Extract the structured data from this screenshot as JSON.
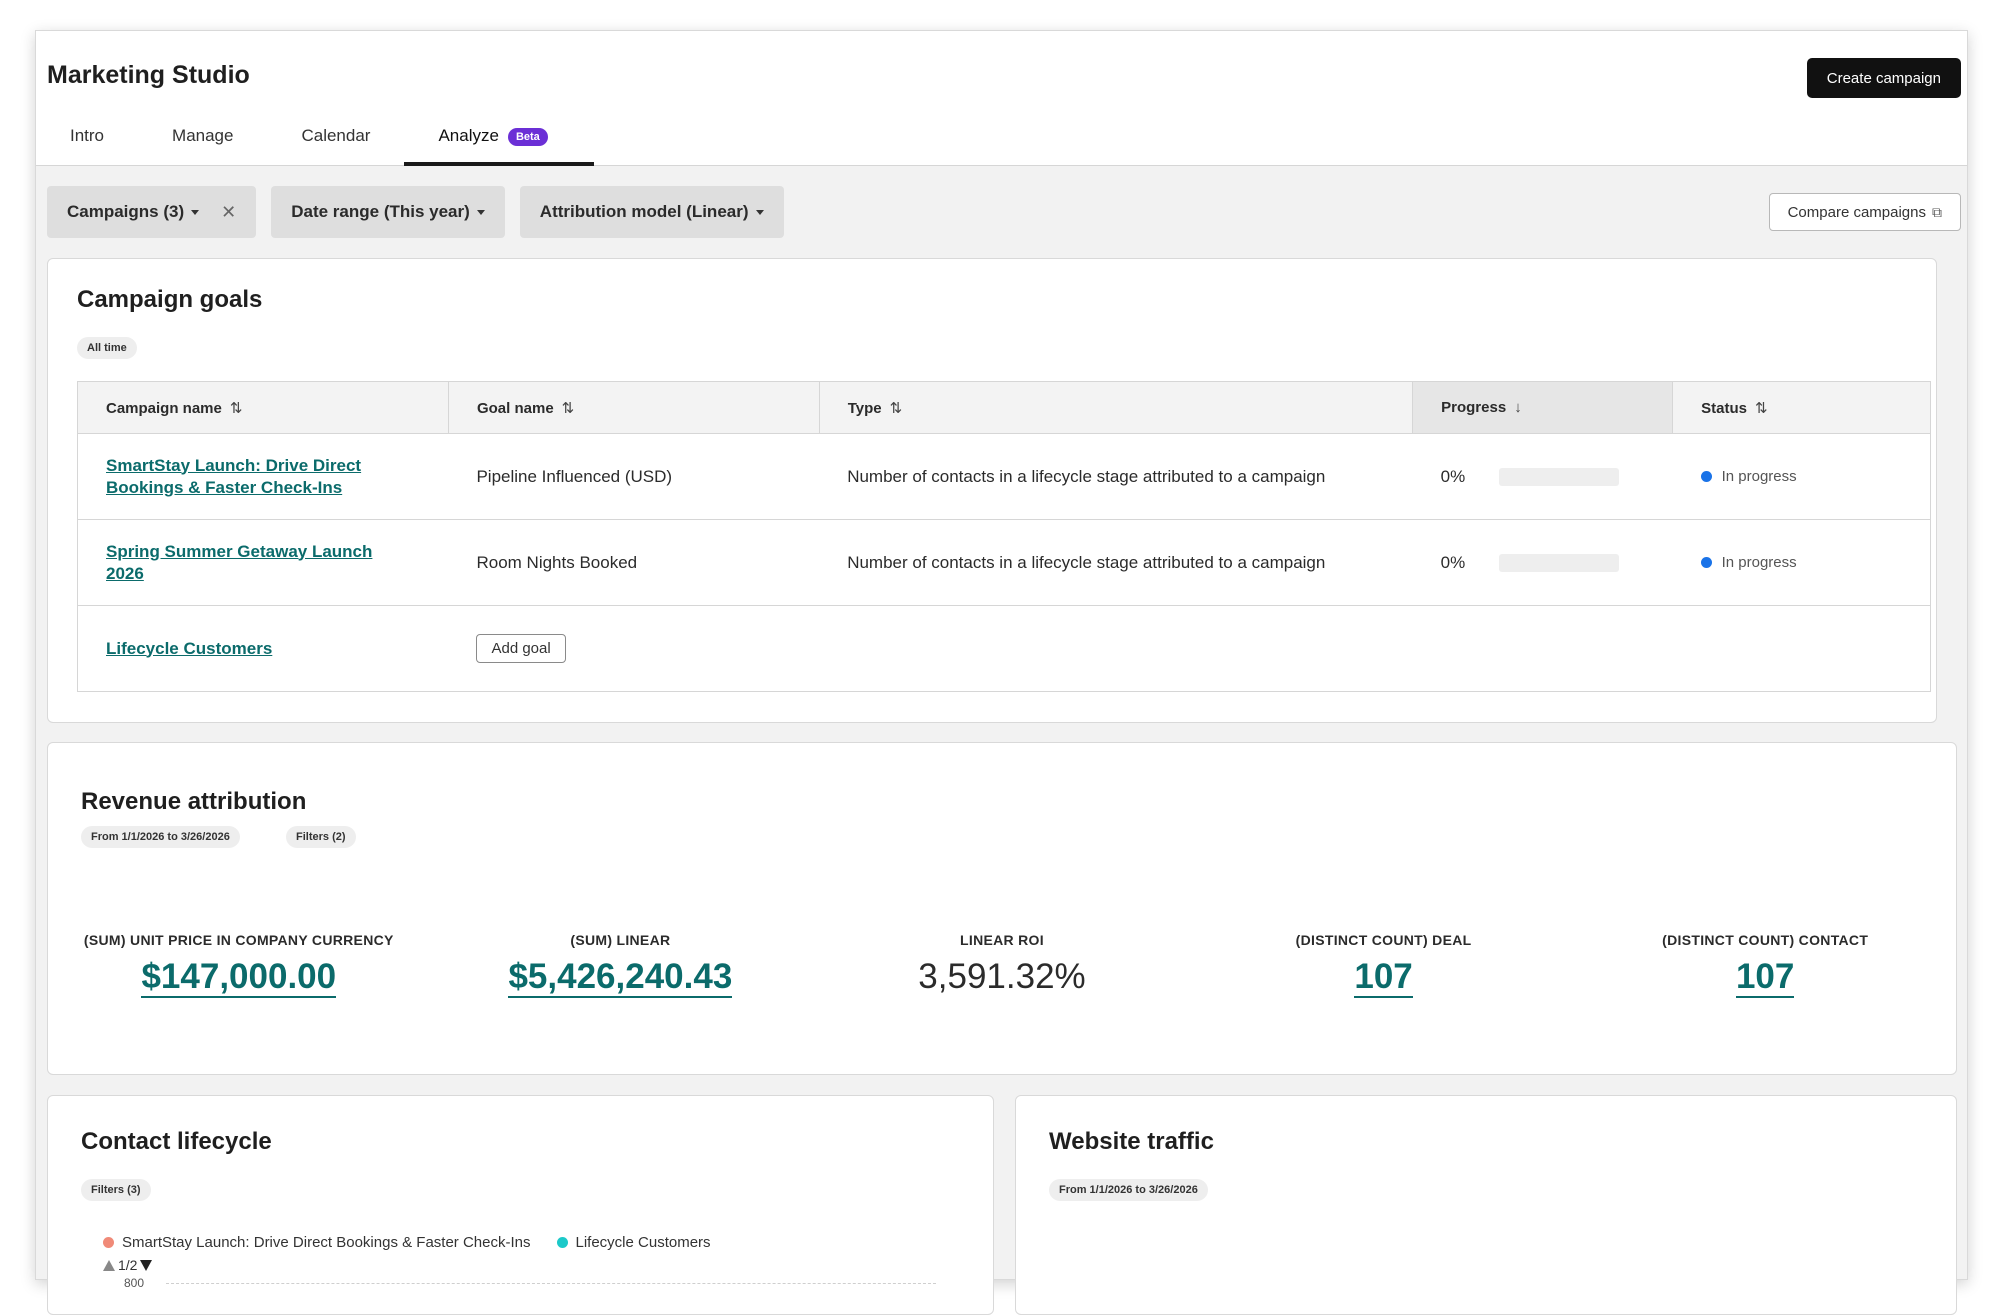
{
  "app": {
    "title": "Marketing Studio",
    "create_button": "Create campaign"
  },
  "tabs": [
    {
      "label": "Intro"
    },
    {
      "label": "Manage"
    },
    {
      "label": "Calendar"
    },
    {
      "label": "Analyze",
      "badge": "Beta",
      "active": true
    }
  ],
  "filters": {
    "campaigns": "Campaigns (3)",
    "date_range": "Date range (This year)",
    "attribution": "Attribution model (Linear)",
    "compare_button": "Compare campaigns"
  },
  "goals": {
    "title": "Campaign goals",
    "period": "All time",
    "columns": {
      "campaign": "Campaign name",
      "goal": "Goal name",
      "type": "Type",
      "progress": "Progress",
      "status": "Status"
    },
    "rows": [
      {
        "campaign": "SmartStay Launch: Drive Direct Bookings & Faster Check-Ins",
        "goal": "Pipeline Influenced (USD)",
        "type": "Number of contacts in a lifecycle stage attributed to a campaign",
        "progress": "0%",
        "progress_value": 0,
        "status": "In progress"
      },
      {
        "campaign": "Spring Summer Getaway Launch 2026",
        "goal": "Room Nights Booked",
        "type": "Number of contacts in a lifecycle stage attributed to a campaign",
        "progress": "0%",
        "progress_value": 0,
        "status": "In progress"
      },
      {
        "campaign": "Lifecycle Customers",
        "add_goal": "Add goal"
      }
    ]
  },
  "revenue": {
    "title": "Revenue attribution",
    "date_pill": "From 1/1/2026 to 3/26/2026",
    "filters_pill": "Filters (2)",
    "metrics": [
      {
        "label": "(SUM) UNIT PRICE IN COMPANY CURRENCY",
        "value": "$147,000.00"
      },
      {
        "label": "(SUM) LINEAR",
        "value": "$5,426,240.43"
      },
      {
        "label": "LINEAR ROI",
        "value": "3,591.32%"
      },
      {
        "label": "(DISTINCT COUNT) DEAL",
        "value": "107"
      },
      {
        "label": "(DISTINCT COUNT) CONTACT",
        "value": "107"
      }
    ]
  },
  "lifecycle": {
    "title": "Contact lifecycle",
    "filters_pill": "Filters (3)",
    "legend": [
      {
        "label": "SmartStay Launch: Drive Direct Bookings & Faster Check-Ins",
        "color": "#f08a78"
      },
      {
        "label": "Lifecycle Customers",
        "color": "#1cc9c9"
      }
    ],
    "pager": "1/2",
    "y_tick": "800"
  },
  "traffic": {
    "title": "Website traffic",
    "date_pill": "From 1/1/2026 to 3/26/2026"
  },
  "colors": {
    "link": "#0b6b6b",
    "status_dot": "#1a73e8",
    "beta": "#6b2fd6"
  }
}
